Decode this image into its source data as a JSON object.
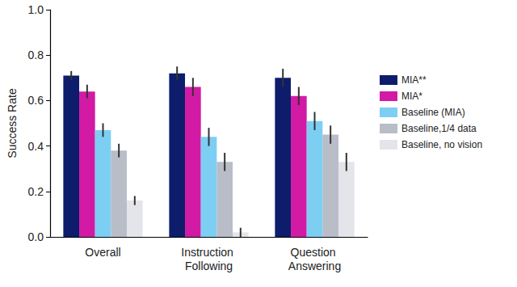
{
  "chart_data": {
    "type": "bar",
    "y_label": "Success Rate",
    "categories": [
      "Overall",
      "Instruction Following",
      "Question Answering"
    ],
    "series": [
      {
        "name": "MIA**",
        "color": "#0d1d6b",
        "values": [
          0.71,
          0.72,
          0.7
        ],
        "errors": [
          0.02,
          0.03,
          0.04
        ]
      },
      {
        "name": "MIA*",
        "color": "#d21aa5",
        "values": [
          0.64,
          0.66,
          0.62
        ],
        "errors": [
          0.03,
          0.04,
          0.04
        ]
      },
      {
        "name": "Baseline (MIA)",
        "color": "#7ccff3",
        "values": [
          0.47,
          0.44,
          0.51
        ],
        "errors": [
          0.03,
          0.04,
          0.04
        ]
      },
      {
        "name": "Baseline,1/4 data",
        "color": "#b8bdc8",
        "values": [
          0.38,
          0.33,
          0.45
        ],
        "errors": [
          0.03,
          0.04,
          0.04
        ]
      },
      {
        "name": "Baseline, no vision",
        "color": "#e3e5ea",
        "values": [
          0.16,
          0.02,
          0.33
        ],
        "errors": [
          0.02,
          0.02,
          0.04
        ]
      }
    ],
    "ylim": [
      0,
      1
    ],
    "yticks": [
      {
        "value": 0,
        "label": "0.0"
      },
      0.2,
      0.4,
      0.6,
      0.8,
      {
        "value": 1,
        "label": "1.0"
      }
    ],
    "grid": false,
    "legend": "right"
  }
}
